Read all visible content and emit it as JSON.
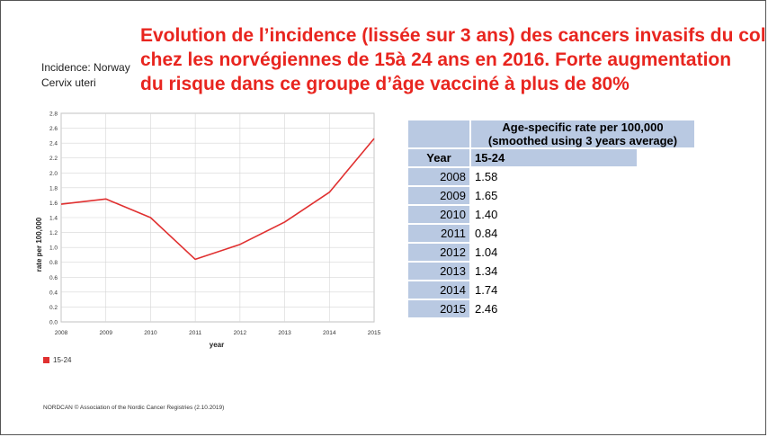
{
  "title_lines": [
    "Evolution de l’incidence (lissée sur 3 ans) des cancers invasifs du col",
    "chez les norvégiennes de 15à 24 ans en 2016. Forte augmentation",
    "du risque dans ce groupe d’âge vacciné à plus de 80%"
  ],
  "subtitle_lines": [
    "Incidence: Norway",
    "Cervix uteri"
  ],
  "footer": "NORDCAN © Association of the Nordic Cancer Registries (2.10.2019)",
  "table": {
    "header_line1": "Age-specific rate per 100,000",
    "header_line2": "(smoothed using 3 years average)",
    "year_label": "Year",
    "age_label": "15-24",
    "rows": [
      {
        "year": "2008",
        "value": "1.58"
      },
      {
        "year": "2009",
        "value": "1.65"
      },
      {
        "year": "2010",
        "value": "1.40"
      },
      {
        "year": "2011",
        "value": "0.84"
      },
      {
        "year": "2012",
        "value": "1.04"
      },
      {
        "year": "2013",
        "value": "1.34"
      },
      {
        "year": "2014",
        "value": "1.74"
      },
      {
        "year": "2015",
        "value": "2.46"
      }
    ]
  },
  "chart_data": {
    "type": "line",
    "x": [
      2008,
      2009,
      2010,
      2011,
      2012,
      2013,
      2014,
      2015
    ],
    "series": [
      {
        "name": "15-24",
        "values": [
          1.58,
          1.65,
          1.4,
          0.84,
          1.04,
          1.34,
          1.74,
          2.46
        ],
        "color": "#e03030"
      }
    ],
    "xlabel": "year",
    "ylabel": "rate per 100,000",
    "ylim": [
      0,
      2.8
    ],
    "yticks": [
      "0.0",
      "0.2",
      "0.4",
      "0.6",
      "0.8",
      "1.0",
      "1.2",
      "1.4",
      "1.6",
      "1.8",
      "2.0",
      "2.2",
      "2.4",
      "2.6",
      "2.8"
    ],
    "xticks": [
      "2008",
      "2009",
      "2010",
      "2011",
      "2012",
      "2013",
      "2014",
      "2015"
    ],
    "grid": true,
    "legend_position": "bottom-left"
  }
}
